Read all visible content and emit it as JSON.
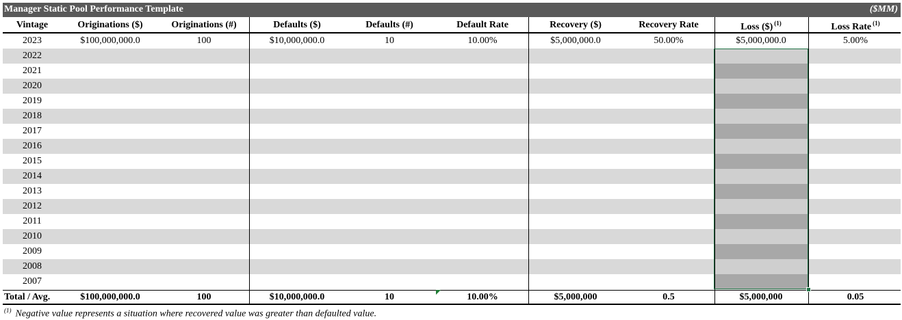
{
  "title": "Manager Static Pool Performance Template",
  "units": "($MM)",
  "headers": [
    {
      "label": "Vintage",
      "sup": ""
    },
    {
      "label": "Originations ($)",
      "sup": ""
    },
    {
      "label": "Originations (#)",
      "sup": ""
    },
    {
      "label": "Defaults ($)",
      "sup": ""
    },
    {
      "label": "Defaults (#)",
      "sup": ""
    },
    {
      "label": "Default Rate",
      "sup": ""
    },
    {
      "label": "Recovery ($)",
      "sup": ""
    },
    {
      "label": "Recovery Rate",
      "sup": ""
    },
    {
      "label": "Loss ($)",
      "sup": "(1)"
    },
    {
      "label": "Loss Rate",
      "sup": "(1)"
    }
  ],
  "rows": [
    {
      "vintage": "2023",
      "originations_usd": "$100,000,000.0",
      "originations_num": "100",
      "defaults_usd": "$10,000,000.0",
      "defaults_num": "10",
      "default_rate": "10.00%",
      "recovery_usd": "$5,000,000.0",
      "recovery_rate": "50.00%",
      "loss_usd": "$5,000,000.0",
      "loss_rate": "5.00%"
    },
    {
      "vintage": "2022"
    },
    {
      "vintage": "2021"
    },
    {
      "vintage": "2020"
    },
    {
      "vintage": "2019"
    },
    {
      "vintage": "2018"
    },
    {
      "vintage": "2017"
    },
    {
      "vintage": "2016"
    },
    {
      "vintage": "2015"
    },
    {
      "vintage": "2014"
    },
    {
      "vintage": "2013"
    },
    {
      "vintage": "2012"
    },
    {
      "vintage": "2011"
    },
    {
      "vintage": "2010"
    },
    {
      "vintage": "2009"
    },
    {
      "vintage": "2008"
    },
    {
      "vintage": "2007"
    }
  ],
  "total": {
    "label": "Total / Avg.",
    "originations_usd": "$100,000,000.0",
    "originations_num": "100",
    "defaults_usd": "$10,000,000.0",
    "defaults_num": "10",
    "default_rate": "10.00%",
    "recovery_usd": "$5,000,000",
    "recovery_rate": "0.5",
    "loss_usd": "$5,000,000",
    "loss_rate": "0.05"
  },
  "footnote": {
    "marker": "(1)",
    "text": "Negative value represents a situation where recovered value was greater than defaulted value."
  },
  "colors": {
    "title_bg": "#595959",
    "band": "#d9d9d9",
    "selection_border": "#217346",
    "selection_fill": "#a8a8a8"
  }
}
